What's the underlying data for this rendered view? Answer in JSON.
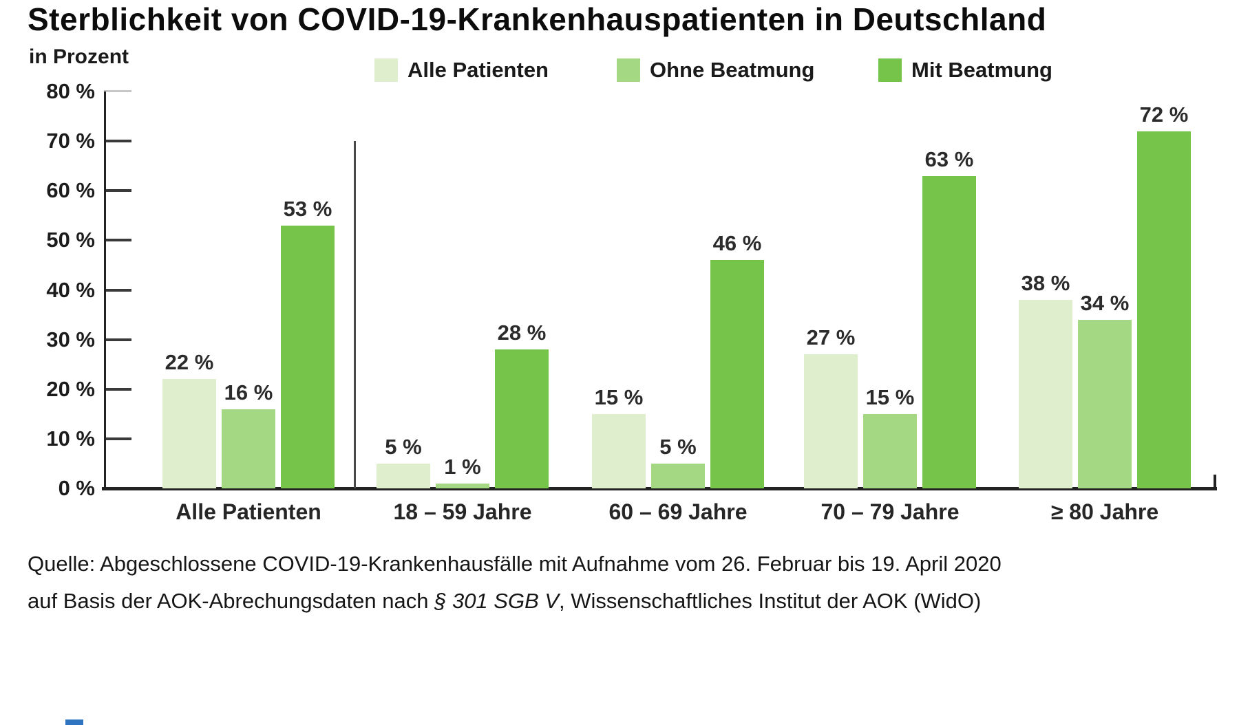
{
  "title": "Sterblichkeit von COVID-19-Krankenhauspatienten in Deutschland",
  "unit_label": "in Prozent",
  "chart_data": {
    "type": "bar",
    "title": "Sterblichkeit von COVID-19-Krankenhauspatienten in Deutschland",
    "ylabel": "in Prozent",
    "categories": [
      "Alle Patienten",
      "18 – 59 Jahre",
      "60 – 69 Jahre",
      "70 – 79 Jahre",
      "≥ 80 Jahre"
    ],
    "series": [
      {
        "name": "Alle Patienten",
        "color": "#dfeecd",
        "values": [
          22,
          5,
          15,
          27,
          38
        ]
      },
      {
        "name": "Ohne Beatmung",
        "color": "#a5d883",
        "values": [
          16,
          1,
          5,
          15,
          34
        ]
      },
      {
        "name": "Mit Beatmung",
        "color": "#76c44a",
        "values": [
          53,
          28,
          46,
          63,
          72
        ]
      }
    ],
    "value_suffix": " %",
    "ylim": [
      0,
      80
    ],
    "ytick_step": 10,
    "ytick_labels": [
      "0 %",
      "10 %",
      "20 %",
      "30 %",
      "40 %",
      "50 %",
      "60 %",
      "70 %",
      "80 %"
    ],
    "legend_position": "top",
    "grid": false,
    "separator_after_first_category": true
  },
  "colors": {
    "axis": "#222222",
    "tick": "#3a3a3a",
    "top_tick": "#c6c6c6",
    "separator": "#4a4a4a",
    "text": "#1a1a1a"
  },
  "source": {
    "line1": "Quelle: Abgeschlossene COVID-19-Krankenhausfälle mit Aufnahme vom 26. Februar bis 19. April 2020",
    "line2_prefix": "auf Basis der AOK-Abrechungsdaten nach ",
    "line2_italic": "§ 301 SGB V",
    "line2_suffix": ", Wissenschaftliches Institut der AOK (WidO)"
  }
}
